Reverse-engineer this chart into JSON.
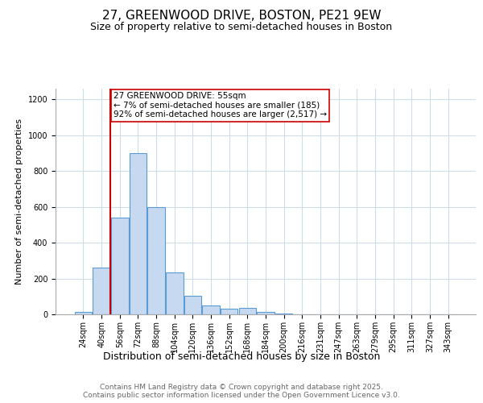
{
  "title": "27, GREENWOOD DRIVE, BOSTON, PE21 9EW",
  "subtitle": "Size of property relative to semi-detached houses in Boston",
  "xlabel": "Distribution of semi-detached houses by size in Boston",
  "ylabel": "Number of semi-detached properties",
  "categories": [
    "24sqm",
    "40sqm",
    "56sqm",
    "72sqm",
    "88sqm",
    "104sqm",
    "120sqm",
    "136sqm",
    "152sqm",
    "168sqm",
    "184sqm",
    "200sqm",
    "216sqm",
    "231sqm",
    "247sqm",
    "263sqm",
    "279sqm",
    "295sqm",
    "311sqm",
    "327sqm",
    "343sqm"
  ],
  "values": [
    15,
    260,
    540,
    900,
    600,
    235,
    105,
    50,
    30,
    35,
    15,
    5,
    2,
    1,
    1,
    1,
    1,
    1,
    0,
    0,
    0
  ],
  "bar_color": "#c6d9f0",
  "bar_edge_color": "#5b9bd5",
  "ylim": [
    0,
    1260
  ],
  "yticks": [
    0,
    200,
    400,
    600,
    800,
    1000,
    1200
  ],
  "property_index": 2,
  "property_label": "27 GREENWOOD DRIVE: 55sqm",
  "annotation_line1": "← 7% of semi-detached houses are smaller (185)",
  "annotation_line2": "92% of semi-detached houses are larger (2,517) →",
  "red_line_color": "#cc0000",
  "annotation_box_color": "#cc0000",
  "grid_color": "#d0dce8",
  "footer_line1": "Contains HM Land Registry data © Crown copyright and database right 2025.",
  "footer_line2": "Contains public sector information licensed under the Open Government Licence v3.0.",
  "title_fontsize": 11,
  "subtitle_fontsize": 9,
  "xlabel_fontsize": 9,
  "ylabel_fontsize": 8,
  "tick_fontsize": 7,
  "footer_fontsize": 6.5,
  "annotation_fontsize": 7.5
}
